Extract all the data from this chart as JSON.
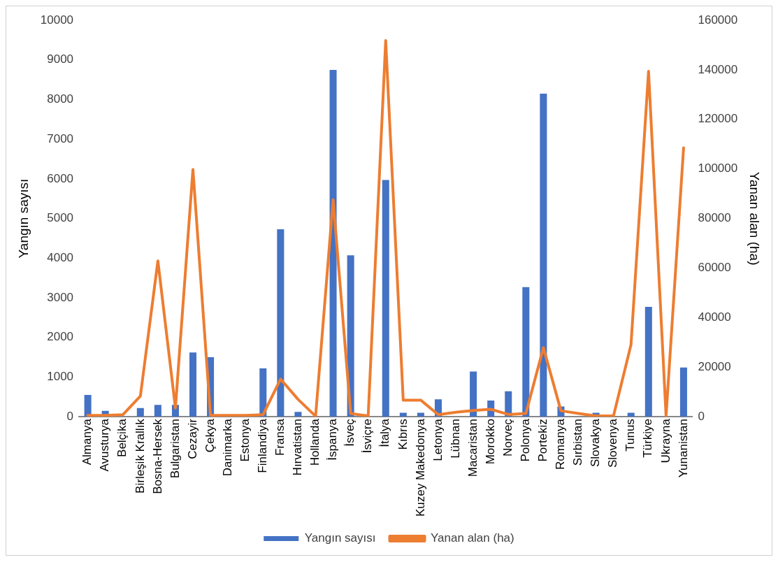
{
  "chart_data": {
    "type": "bar",
    "ylabel": "Yangın sayısı",
    "y2label": "Yanan alan (ha)",
    "categories": [
      "Almanya",
      "Avusturya",
      "Belçika",
      "Birleşik Krallık",
      "Bosna-Hersek",
      "Bulgaristan",
      "Cezayir",
      "Çekya",
      "Danimarka",
      "Estonya",
      "Finlandiya",
      "Fransa",
      "Hırvatistan",
      "Hollanda",
      "İspanya",
      "İsveç",
      "İsviçre",
      "İtalya",
      "Kıbrıs",
      "Kuzey Makedonya",
      "Letonya",
      "Lübnan",
      "Macaristan",
      "Morokko",
      "Norveç",
      "Polonya",
      "Portekiz",
      "Romanya",
      "Sırbistan",
      "Slovakya",
      "Slovenya",
      "Tunus",
      "Türkiye",
      "Ukrayna",
      "Yunanistan"
    ],
    "series": [
      {
        "name": "Yangın sayısı",
        "color": "#4472c4",
        "values": [
          550,
          150,
          0,
          220,
          300,
          300,
          1620,
          1500,
          0,
          0,
          1220,
          4730,
          120,
          0,
          8750,
          4070,
          0,
          5970,
          100,
          100,
          440,
          0,
          1140,
          410,
          640,
          3270,
          8150,
          260,
          0,
          100,
          0,
          100,
          2770,
          0,
          1240
        ]
      },
      {
        "name": "Yanan alan (ha)",
        "type": "line",
        "axis": "y2",
        "color": "#ed7d31",
        "values": [
          500,
          500,
          800,
          8300,
          62900,
          3500,
          99800,
          500,
          500,
          500,
          800,
          15200,
          7000,
          200,
          87600,
          1300,
          300,
          151800,
          6700,
          6700,
          800,
          1800,
          2500,
          3000,
          900,
          1300,
          27900,
          2400,
          1300,
          300,
          300,
          29100,
          139400,
          300,
          108500
        ]
      }
    ],
    "ylim": [
      0,
      10000
    ],
    "yticks": [
      0,
      1000,
      2000,
      3000,
      4000,
      5000,
      6000,
      7000,
      8000,
      9000,
      10000
    ],
    "y2lim": [
      0,
      160000
    ],
    "y2ticks": [
      0,
      20000,
      40000,
      60000,
      80000,
      100000,
      120000,
      140000,
      160000
    ],
    "grid": false,
    "legend": "bottom",
    "marker": "none",
    "line_style": "solid"
  }
}
